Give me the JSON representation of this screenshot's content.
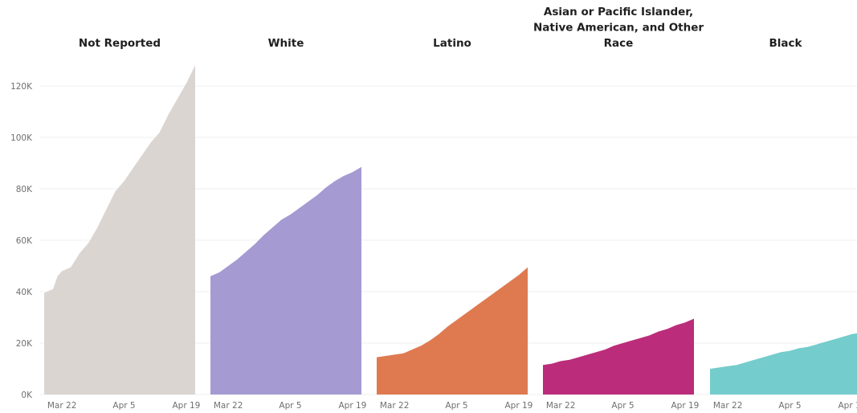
{
  "chart_data": {
    "type": "area",
    "layout": "small-multiples",
    "grid": true,
    "y_axis": {
      "ylim": [
        0,
        130000
      ],
      "ticks": [
        0,
        20000,
        40000,
        60000,
        80000,
        100000,
        120000
      ],
      "tick_labels": [
        "0K",
        "20K",
        "40K",
        "60K",
        "80K",
        "100K",
        "120K"
      ]
    },
    "x_axis": {
      "x_start": "Mar 18",
      "x_end": "Apr 20",
      "ticks": [
        4,
        18,
        32
      ],
      "tick_labels": [
        "Mar 22",
        "Apr 5",
        "Apr 19"
      ]
    },
    "panels": [
      {
        "title": [
          "Not Reported"
        ],
        "color": "#dbd5d2",
        "x": [
          0,
          2,
          3,
          4,
          6,
          8,
          10,
          12,
          14,
          16,
          18,
          20,
          22,
          24,
          26,
          28,
          30,
          32,
          34
        ],
        "values": [
          39500,
          41000,
          46000,
          48000,
          49500,
          55000,
          59000,
          65000,
          72000,
          79000,
          83000,
          88000,
          93000,
          98000,
          102000,
          109000,
          115000,
          121000,
          128000
        ]
      },
      {
        "title": [
          "White"
        ],
        "color": "#a59bd2",
        "x": [
          0,
          2,
          4,
          6,
          8,
          10,
          12,
          14,
          16,
          18,
          20,
          22,
          24,
          26,
          28,
          30,
          32,
          34
        ],
        "values": [
          46000,
          47500,
          50000,
          52500,
          55500,
          58500,
          62000,
          65000,
          68000,
          70000,
          72500,
          75000,
          77500,
          80500,
          83000,
          85000,
          86500,
          88500
        ]
      },
      {
        "title": [
          "Latino"
        ],
        "color": "#df7a50",
        "x": [
          0,
          2,
          4,
          6,
          8,
          10,
          12,
          14,
          16,
          18,
          20,
          22,
          24,
          26,
          28,
          30,
          32,
          34
        ],
        "values": [
          14500,
          15000,
          15500,
          16000,
          17500,
          19000,
          21000,
          23500,
          26500,
          29000,
          31500,
          34000,
          36500,
          39000,
          41500,
          44000,
          46500,
          49500
        ]
      },
      {
        "title": [
          "Asian or Pacific Islander,",
          "Native American, and Other",
          "Race"
        ],
        "color": "#bb2c7a",
        "x": [
          0,
          2,
          4,
          6,
          8,
          10,
          12,
          14,
          16,
          18,
          20,
          22,
          24,
          26,
          28,
          30,
          32,
          34
        ],
        "values": [
          11500,
          12000,
          13000,
          13500,
          14500,
          15500,
          16500,
          17500,
          19000,
          20000,
          21000,
          22000,
          23000,
          24500,
          25500,
          27000,
          28000,
          29500
        ]
      },
      {
        "title": [
          "Black"
        ],
        "color": "#74cccc",
        "x": [
          0,
          2,
          4,
          6,
          8,
          10,
          12,
          14,
          16,
          18,
          20,
          22,
          24,
          26,
          28,
          30,
          32,
          34
        ],
        "values": [
          10000,
          10500,
          11000,
          11500,
          12500,
          13500,
          14500,
          15500,
          16500,
          17000,
          18000,
          18500,
          19500,
          20500,
          21500,
          22500,
          23500,
          24000
        ]
      }
    ]
  }
}
